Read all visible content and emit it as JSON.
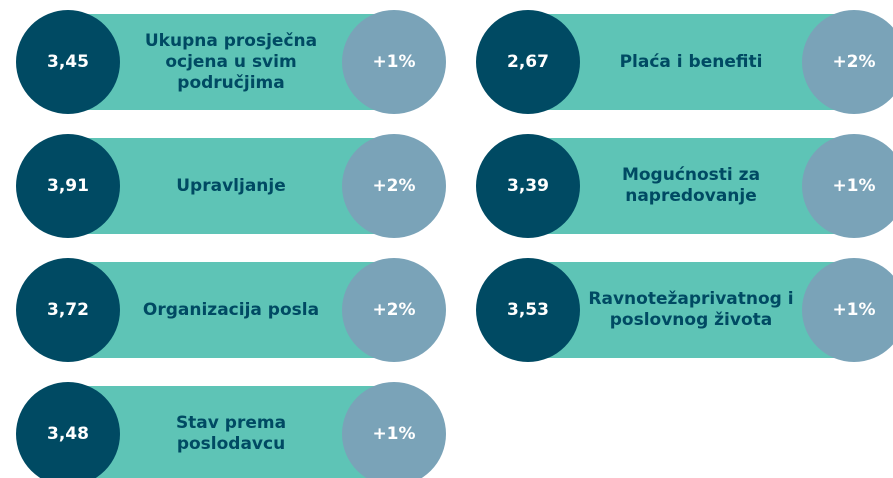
{
  "columns": [
    [
      {
        "score": "3,45",
        "label": "Ukupna prosječna ocjena u svim područjima",
        "change": "+1%"
      },
      {
        "score": "3,91",
        "label": "Upravljanje",
        "change": "+2%"
      },
      {
        "score": "3,72",
        "label": "Organizacija posla",
        "change": "+2%"
      },
      {
        "score": "3,48",
        "label": "Stav prema poslodavcu",
        "change": "+1%"
      }
    ],
    [
      {
        "score": "2,67",
        "label": "Plaća i benefiti",
        "change": "+2%"
      },
      {
        "score": "3,39",
        "label": "Mogućnosti za napredovanje",
        "change": "+1%"
      },
      {
        "score": "3,53",
        "label": "Ravnotežaprivatnog i poslovnog života",
        "change": "+1%"
      }
    ]
  ]
}
